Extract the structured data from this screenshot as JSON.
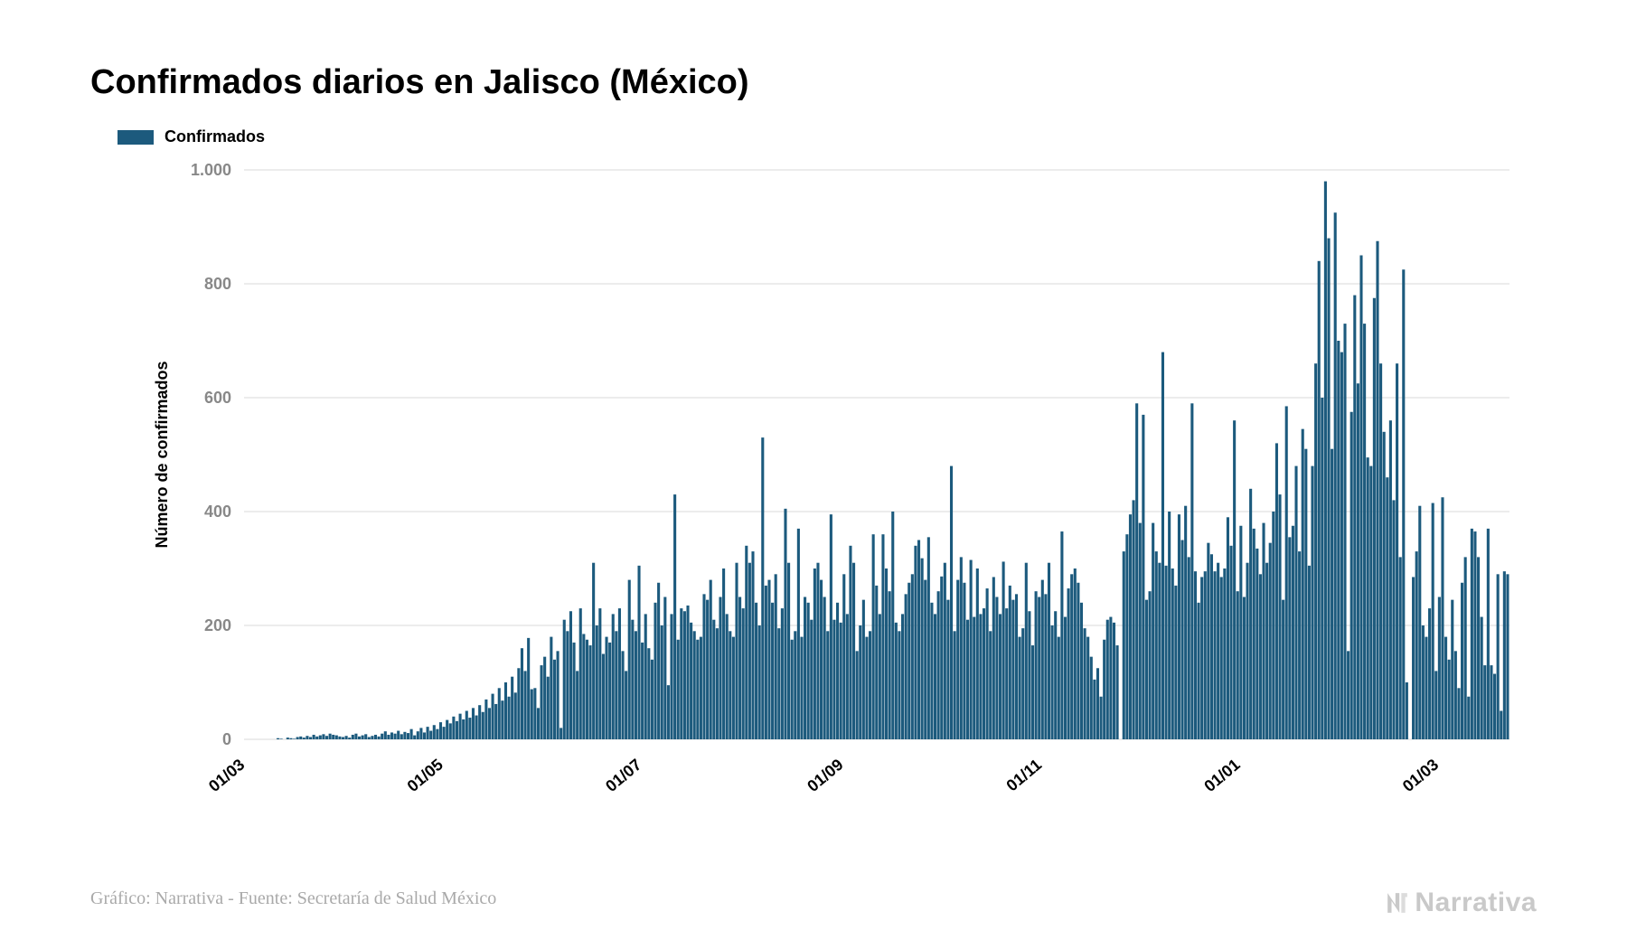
{
  "title": "Confirmados diarios en Jalisco (México)",
  "legend": {
    "label": "Confirmados",
    "color": "#1c5a7d"
  },
  "ylabel": "Número de confirmados",
  "source_line": "Gráfico: Narrativa - Fuente: Secretaría de Salud México",
  "brand": "Narrativa",
  "chart": {
    "type": "bar",
    "bar_color": "#1c5a7d",
    "background_color": "#ffffff",
    "grid_color": "#d8d8d8",
    "axis_text_color": "#888888",
    "xaxis_text_color": "#000000",
    "ylim": [
      0,
      1000
    ],
    "yticks": [
      0,
      200,
      400,
      600,
      800,
      1000
    ],
    "ytick_labels": [
      "0",
      "200",
      "400",
      "600",
      "800",
      "1.000"
    ],
    "xticks_idx": [
      0,
      61,
      122,
      184,
      245,
      306,
      367
    ],
    "xtick_labels": [
      "01/03",
      "01/05",
      "01/07",
      "01/09",
      "01/11",
      "01/01",
      "01/03"
    ],
    "xtick_rotation_deg": -40,
    "values": [
      0,
      0,
      0,
      0,
      0,
      0,
      0,
      0,
      0,
      0,
      2,
      1,
      0,
      3,
      2,
      1,
      4,
      5,
      3,
      6,
      4,
      8,
      5,
      7,
      9,
      6,
      10,
      8,
      7,
      5,
      4,
      6,
      3,
      8,
      10,
      5,
      7,
      9,
      4,
      6,
      8,
      5,
      10,
      14,
      8,
      12,
      10,
      15,
      9,
      13,
      11,
      18,
      7,
      14,
      20,
      12,
      22,
      15,
      25,
      18,
      30,
      22,
      34,
      28,
      40,
      32,
      45,
      35,
      50,
      38,
      55,
      42,
      60,
      48,
      70,
      55,
      80,
      62,
      90,
      68,
      100,
      75,
      110,
      82,
      125,
      160,
      120,
      178,
      88,
      90,
      55,
      130,
      145,
      110,
      180,
      140,
      155,
      20,
      210,
      190,
      225,
      170,
      120,
      230,
      185,
      175,
      165,
      310,
      200,
      230,
      150,
      180,
      170,
      220,
      190,
      230,
      155,
      120,
      280,
      210,
      190,
      305,
      170,
      220,
      160,
      140,
      240,
      275,
      200,
      250,
      95,
      220,
      430,
      175,
      230,
      225,
      235,
      205,
      190,
      175,
      180,
      255,
      245,
      280,
      210,
      195,
      250,
      300,
      220,
      190,
      180,
      310,
      250,
      230,
      340,
      310,
      330,
      240,
      200,
      530,
      270,
      280,
      240,
      290,
      195,
      230,
      405,
      310,
      175,
      190,
      370,
      180,
      250,
      240,
      210,
      300,
      310,
      280,
      250,
      190,
      395,
      210,
      240,
      205,
      290,
      220,
      340,
      310,
      155,
      200,
      245,
      180,
      190,
      360,
      270,
      220,
      360,
      300,
      260,
      400,
      205,
      190,
      220,
      255,
      275,
      290,
      340,
      350,
      318,
      280,
      355,
      240,
      220,
      260,
      286,
      310,
      245,
      480,
      190,
      280,
      320,
      275,
      210,
      315,
      215,
      300,
      220,
      230,
      265,
      190,
      285,
      250,
      220,
      312,
      230,
      270,
      245,
      255,
      180,
      195,
      310,
      225,
      165,
      260,
      250,
      280,
      255,
      310,
      200,
      225,
      180,
      365,
      215,
      265,
      290,
      300,
      275,
      240,
      195,
      180,
      145,
      105,
      125,
      75,
      175,
      210,
      215,
      205,
      165,
      0,
      330,
      360,
      395,
      420,
      590,
      380,
      570,
      245,
      260,
      380,
      330,
      310,
      680,
      305,
      400,
      300,
      270,
      395,
      350,
      410,
      320,
      590,
      295,
      240,
      285,
      295,
      345,
      325,
      295,
      310,
      285,
      300,
      390,
      340,
      560,
      260,
      375,
      250,
      310,
      440,
      370,
      335,
      290,
      380,
      310,
      345,
      400,
      520,
      430,
      245,
      585,
      355,
      375,
      480,
      330,
      545,
      510,
      305,
      480,
      660,
      840,
      600,
      980,
      880,
      510,
      925,
      700,
      680,
      730,
      155,
      575,
      780,
      625,
      850,
      730,
      495,
      480,
      775,
      875,
      660,
      540,
      460,
      560,
      420,
      660,
      320,
      825,
      100,
      0,
      285,
      330,
      410,
      200,
      180,
      230,
      415,
      120,
      250,
      425,
      180,
      140,
      245,
      155,
      90,
      275,
      320,
      75,
      370,
      365,
      320,
      215,
      130,
      370,
      130,
      115,
      290,
      50,
      295,
      290
    ]
  }
}
